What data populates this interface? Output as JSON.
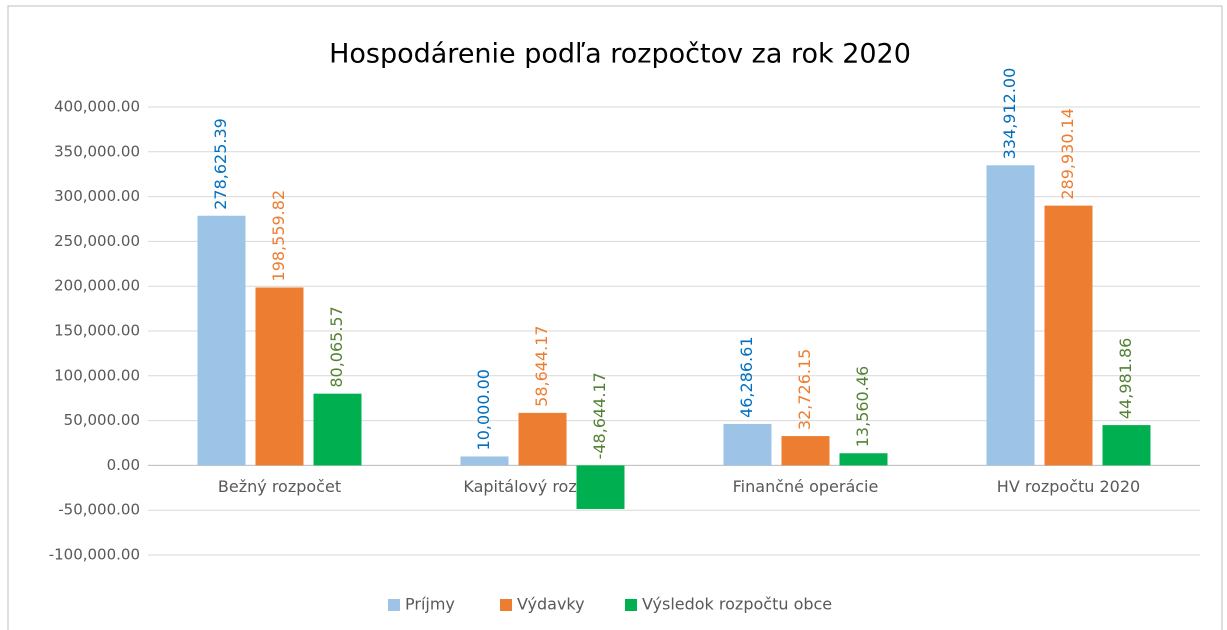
{
  "chart_data": {
    "type": "bar",
    "title": "Hospodárenie podľa rozpočtov za rok 2020",
    "categories": [
      "Bežný rozpočet",
      "Kapitálový rozpočet",
      "Finančné operácie",
      "HV rozpočtu 2020"
    ],
    "series": [
      {
        "name": "Príjmy",
        "color": "#9dc3e6",
        "label_color": "#0070c0",
        "values": [
          278625.39,
          10000.0,
          46286.61,
          334912.0
        ],
        "value_labels": [
          "278,625.39",
          "10,000.00",
          "46,286.61",
          "334,912.00"
        ]
      },
      {
        "name": "Výdavky",
        "color": "#ed7d31",
        "label_color": "#ed7d31",
        "values": [
          198559.82,
          58644.17,
          32726.15,
          289930.14
        ],
        "value_labels": [
          "198,559.82",
          "58,644.17",
          "32,726.15",
          "289,930.14"
        ]
      },
      {
        "name": "Výsledok rozpočtu obce",
        "color": "#00b050",
        "label_color": "#548235",
        "values": [
          80065.57,
          -48644.17,
          13560.46,
          44981.86
        ],
        "value_labels": [
          "80,065.57",
          "-48,644.17",
          "13,560.46",
          "44,981.86"
        ]
      }
    ],
    "ylim": [
      -100000,
      400000
    ],
    "yticks": [
      {
        "value": -100000,
        "label": "-100,000.00"
      },
      {
        "value": -50000,
        "label": "-50,000.00"
      },
      {
        "value": 0,
        "label": "0.00"
      },
      {
        "value": 50000,
        "label": "50,000.00"
      },
      {
        "value": 100000,
        "label": "100,000.00"
      },
      {
        "value": 150000,
        "label": "150,000.00"
      },
      {
        "value": 200000,
        "label": "200,000.00"
      },
      {
        "value": 250000,
        "label": "250,000.00"
      },
      {
        "value": 300000,
        "label": "300,000.00"
      },
      {
        "value": 350000,
        "label": "350,000.00"
      },
      {
        "value": 400000,
        "label": "400,000.00"
      }
    ],
    "grid": true,
    "legend": "bottom"
  }
}
